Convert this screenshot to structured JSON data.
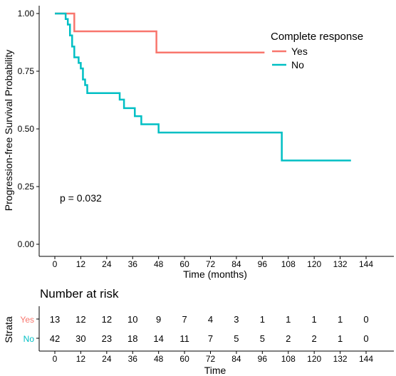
{
  "chart_data": [
    {
      "type": "line",
      "subtype": "kaplan-meier step curve",
      "xlabel": "Time (months)",
      "ylabel": "Progression-free Survival Probability",
      "xlim": [
        0,
        144
      ],
      "ylim": [
        0,
        1
      ],
      "x_ticks": [
        "0",
        "12",
        "24",
        "36",
        "48",
        "60",
        "72",
        "84",
        "96",
        "108",
        "120",
        "132",
        "144"
      ],
      "y_ticks": [
        "0.00",
        "0.25",
        "0.50",
        "0.75",
        "1.00"
      ],
      "grid": false,
      "legend": {
        "title": "Complete response",
        "placement": "top-right"
      },
      "annotation": "p = 0.032",
      "series": [
        {
          "name": "Yes",
          "color": "#F8766D",
          "steps": [
            {
              "x": 0,
              "y": 1.0
            },
            {
              "x": 9,
              "y": 0.923
            },
            {
              "x": 47,
              "y": 0.831
            },
            {
              "x": 97,
              "y": 0.831
            }
          ]
        },
        {
          "name": "No",
          "color": "#00BFC4",
          "steps": [
            {
              "x": 0,
              "y": 1.0
            },
            {
              "x": 5,
              "y": 0.976
            },
            {
              "x": 6,
              "y": 0.952
            },
            {
              "x": 7,
              "y": 0.905
            },
            {
              "x": 8,
              "y": 0.857
            },
            {
              "x": 9,
              "y": 0.81
            },
            {
              "x": 11,
              "y": 0.786
            },
            {
              "x": 12,
              "y": 0.762
            },
            {
              "x": 13,
              "y": 0.714
            },
            {
              "x": 14,
              "y": 0.69
            },
            {
              "x": 15,
              "y": 0.655
            },
            {
              "x": 30,
              "y": 0.627
            },
            {
              "x": 32,
              "y": 0.59
            },
            {
              "x": 37,
              "y": 0.555
            },
            {
              "x": 40,
              "y": 0.52
            },
            {
              "x": 48,
              "y": 0.484
            },
            {
              "x": 105,
              "y": 0.363
            },
            {
              "x": 137,
              "y": 0.363
            }
          ]
        }
      ]
    },
    {
      "type": "table",
      "title": "Number at risk",
      "row_label": "Strata",
      "xlabel": "Time",
      "columns": [
        "0",
        "12",
        "24",
        "36",
        "48",
        "60",
        "72",
        "84",
        "96",
        "108",
        "120",
        "132",
        "144"
      ],
      "rows": [
        {
          "name": "Yes",
          "color": "#F8766D",
          "values": [
            13,
            12,
            12,
            10,
            9,
            7,
            4,
            3,
            1,
            1,
            1,
            1,
            0
          ]
        },
        {
          "name": "No",
          "color": "#00BFC4",
          "values": [
            42,
            30,
            23,
            18,
            14,
            11,
            7,
            5,
            5,
            2,
            2,
            1,
            0
          ]
        }
      ]
    }
  ]
}
